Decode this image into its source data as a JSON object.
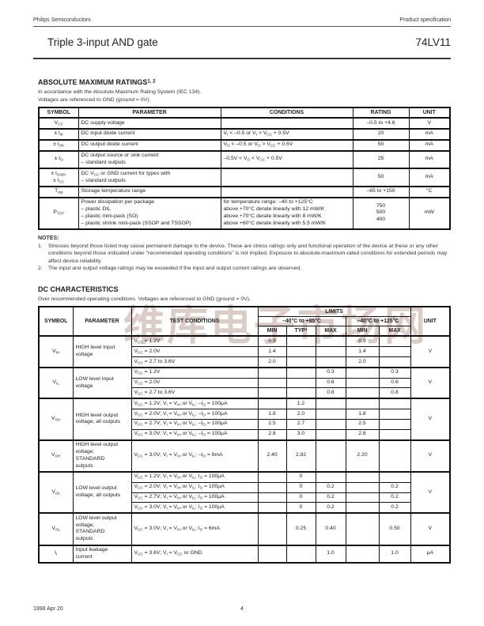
{
  "page": {
    "header_left": "Philips Semiconductors",
    "header_right": "Product specification",
    "title": "Triple 3-input AND gate",
    "part_number": "74LV11",
    "watermark": "维库电子市场网",
    "footer_date": "1998 Apr 20",
    "footer_page": "4"
  },
  "abs_max": {
    "heading": "ABSOLUTE MAXIMUM RATINGS^1, 2^",
    "intro1": "In accordance with the Absolute Maximum Rating System (IEC 134).",
    "intro2": "Voltages are referenced to GND (ground = 0V).",
    "columns": [
      "SYMBOL",
      "PARAMETER",
      "CONDITIONS",
      "RATING",
      "UNIT"
    ],
    "rows": [
      {
        "symbol": "V~CC~",
        "parameter": "DC supply voltage",
        "conditions": "",
        "rating": "–0.5 to +4.6",
        "unit": "V"
      },
      {
        "symbol": "± I~IK~",
        "parameter": "DC input diode current",
        "conditions": "V~I~ < –0.5 or V~I~ > V~CC~ + 0.5V",
        "rating": "20",
        "unit": "mA"
      },
      {
        "symbol": "± I~OK~",
        "parameter": "DC output diode current",
        "conditions": "V~O~ < –0.5 or V~O~ > V~CC~ + 0.5V",
        "rating": "50",
        "unit": "mA"
      },
      {
        "symbol": "± I~O~",
        "parameter": "DC output source or sink current\n– standard outputs",
        "conditions": "–0.5V < V~O~ < V~CC~ + 0.5V",
        "rating": "25",
        "unit": "mA"
      },
      {
        "symbol": "± I~GND~,\n± I~CC~",
        "parameter": "DC V~CC~ or GND current for types with\n– standard outputs",
        "conditions": "",
        "rating": "50",
        "unit": "mA"
      },
      {
        "symbol": "T~stg~",
        "parameter": "Storage temperature range",
        "conditions": "",
        "rating": "–65 to +150",
        "unit": "°C"
      },
      {
        "symbol": "P~TOT~",
        "parameter": "Power dissipation per package\n– plastic DIL\n– plastic mini-pack (SO)\n– plastic shrink mini-pack (SSOP and TSSOP)",
        "conditions": "for temperature range: –40 to +125°C\nabove +70°C derate linearly with 12 mW/K\nabove +70°C derate linearly with 8 mW/K\nabove +60°C derate linearly with 5.5 mW/K",
        "rating": "750\n500\n400",
        "unit": "mW"
      }
    ]
  },
  "notes": {
    "heading": "NOTES:",
    "items": [
      {
        "n": "1.",
        "t": "Stresses beyond those listed may cause permanent damage to the device. These are stress ratings only and functional operation of the device at these or any other conditions beyond those indicated under \"recommended operating conditions\" is not implied. Exposure to absolute-maximum-rated conditions for extended periods may affect device reliability."
      },
      {
        "n": "2.",
        "t": "The input and output voltage ratings may be exceeded if the input and output current ratings are observed."
      }
    ]
  },
  "dc_char": {
    "heading": "DC CHARACTERISTICS",
    "intro": "Over recommended operating conditions. Voltages are referenced to GND (ground = 0V).",
    "header": {
      "symbol": "SYMBOL",
      "parameter": "PARAMETER",
      "test_conditions": "TEST CONDITIONS",
      "limits": "LIMITS",
      "range1": "–40°C to +85°C",
      "range2": "–40°C to +125°C",
      "min": "MIN",
      "typ": "TYP^1^",
      "max": "MAX",
      "unit": "UNIT"
    },
    "groups": [
      {
        "symbol": "V~IH~",
        "parameter": "HIGH level Input\nvoltage",
        "unit": "V",
        "rows": [
          {
            "tc": "V~CC~ = 1.2V",
            "min1": "0.9",
            "typ": "",
            "max1": "",
            "min2": "0.9",
            "max2": ""
          },
          {
            "tc": "V~CC~ = 2.0V",
            "min1": "1.4",
            "typ": "",
            "max1": "",
            "min2": "1.4",
            "max2": ""
          },
          {
            "tc": "V~CC~ = 2.7 to 3.6V",
            "min1": "2.0",
            "typ": "",
            "max1": "",
            "min2": "2.0",
            "max2": ""
          }
        ]
      },
      {
        "symbol": "V~IL~",
        "parameter": "LOW level Input\nvoltage",
        "unit": "V",
        "rows": [
          {
            "tc": "V~CC~ = 1.2V",
            "min1": "",
            "typ": "",
            "max1": "0.3",
            "min2": "",
            "max2": "0.3"
          },
          {
            "tc": "V~CC~ = 2.0V",
            "min1": "",
            "typ": "",
            "max1": "0.6",
            "min2": "",
            "max2": "0.6"
          },
          {
            "tc": "V~CC~ = 2.7 to 3.6V",
            "min1": "",
            "typ": "",
            "max1": "0.8",
            "min2": "",
            "max2": "0.8"
          }
        ]
      },
      {
        "symbol": "V~OH~",
        "parameter": "HIGH level output\nvoltage; all outputs",
        "unit": "V",
        "rows": [
          {
            "tc": "V~CC~ = 1.2V; V~I~ = V~IH~ or V~IL~; –I~O~ = 100µA",
            "min1": "",
            "typ": "1.2",
            "max1": "",
            "min2": "",
            "max2": ""
          },
          {
            "tc": "V~CC~ = 2.0V; V~I~ = V~IH~ or V~IL~; –I~O~ = 100µA",
            "min1": "1.8",
            "typ": "2.0",
            "max1": "",
            "min2": "1.8",
            "max2": ""
          },
          {
            "tc": "V~CC~ = 2.7V; V~I~ = V~IH~ or V~IL~; –I~O~ = 100µA",
            "min1": "2.5",
            "typ": "2.7",
            "max1": "",
            "min2": "2.5",
            "max2": ""
          },
          {
            "tc": "V~CC~ = 3.0V; V~I~ = V~IH~ or V~IL~; –I~O~ = 100µA",
            "min1": "2.8",
            "typ": "3.0",
            "max1": "",
            "min2": "2.8",
            "max2": ""
          }
        ]
      },
      {
        "symbol": "V~OH~",
        "parameter": "HIGH level output\nvoltage;\nSTANDARD\noutputs",
        "unit": "V",
        "rows": [
          {
            "tc": "V~CC~ = 3.0V; V~I~ = V~IH~ or V~IL~; –I~O~ = 6mA",
            "min1": "2.40",
            "typ": "2.82",
            "max1": "",
            "min2": "2.20",
            "max2": ""
          }
        ]
      },
      {
        "symbol": "V~OL~",
        "parameter": "LOW level output\nvoltage; all outputs",
        "unit": "V",
        "rows": [
          {
            "tc": "V~CC~ = 1.2V; V~I~ = V~IH~ or V~IL~; I~O~ = 100µA",
            "min1": "",
            "typ": "0",
            "max1": "",
            "min2": "",
            "max2": ""
          },
          {
            "tc": "V~CC~ = 2.0V; V~I~ = V~IH~ or V~IL~; I~O~ = 100µA",
            "min1": "",
            "typ": "0",
            "max1": "0.2",
            "min2": "",
            "max2": "0.2"
          },
          {
            "tc": "V~CC~ = 2.7V; V~I~ = V~IH~ or V~IL~; I~O~ = 100µA",
            "min1": "",
            "typ": "0",
            "max1": "0.2",
            "min2": "",
            "max2": "0.2"
          },
          {
            "tc": "V~CC~ = 3.0V; V~I~ = V~IH~ or V~IL~; I~O~ = 100µA",
            "min1": "",
            "typ": "0",
            "max1": "0.2",
            "min2": "",
            "max2": "0.2"
          }
        ]
      },
      {
        "symbol": "V~OL~",
        "parameter": "LOW level output\nvoltage;\nSTANDARD\noutputs",
        "unit": "V",
        "rows": [
          {
            "tc": "V~CC~ = 3.0V; V~I~ = V~IH~ or V~IL~; I~O~ = 6mA",
            "min1": "",
            "typ": "0.25",
            "max1": "0.40",
            "min2": "",
            "max2": "0.50"
          }
        ]
      },
      {
        "symbol": "I~I~",
        "parameter": "Input leakage\ncurrent",
        "unit": "µA",
        "rows": [
          {
            "tc": "V~CC~ = 3.6V; V~I~ = V~CC~ or GND",
            "min1": "",
            "typ": "",
            "max1": "1.0",
            "min2": "",
            "max2": "1.0"
          }
        ]
      }
    ]
  }
}
